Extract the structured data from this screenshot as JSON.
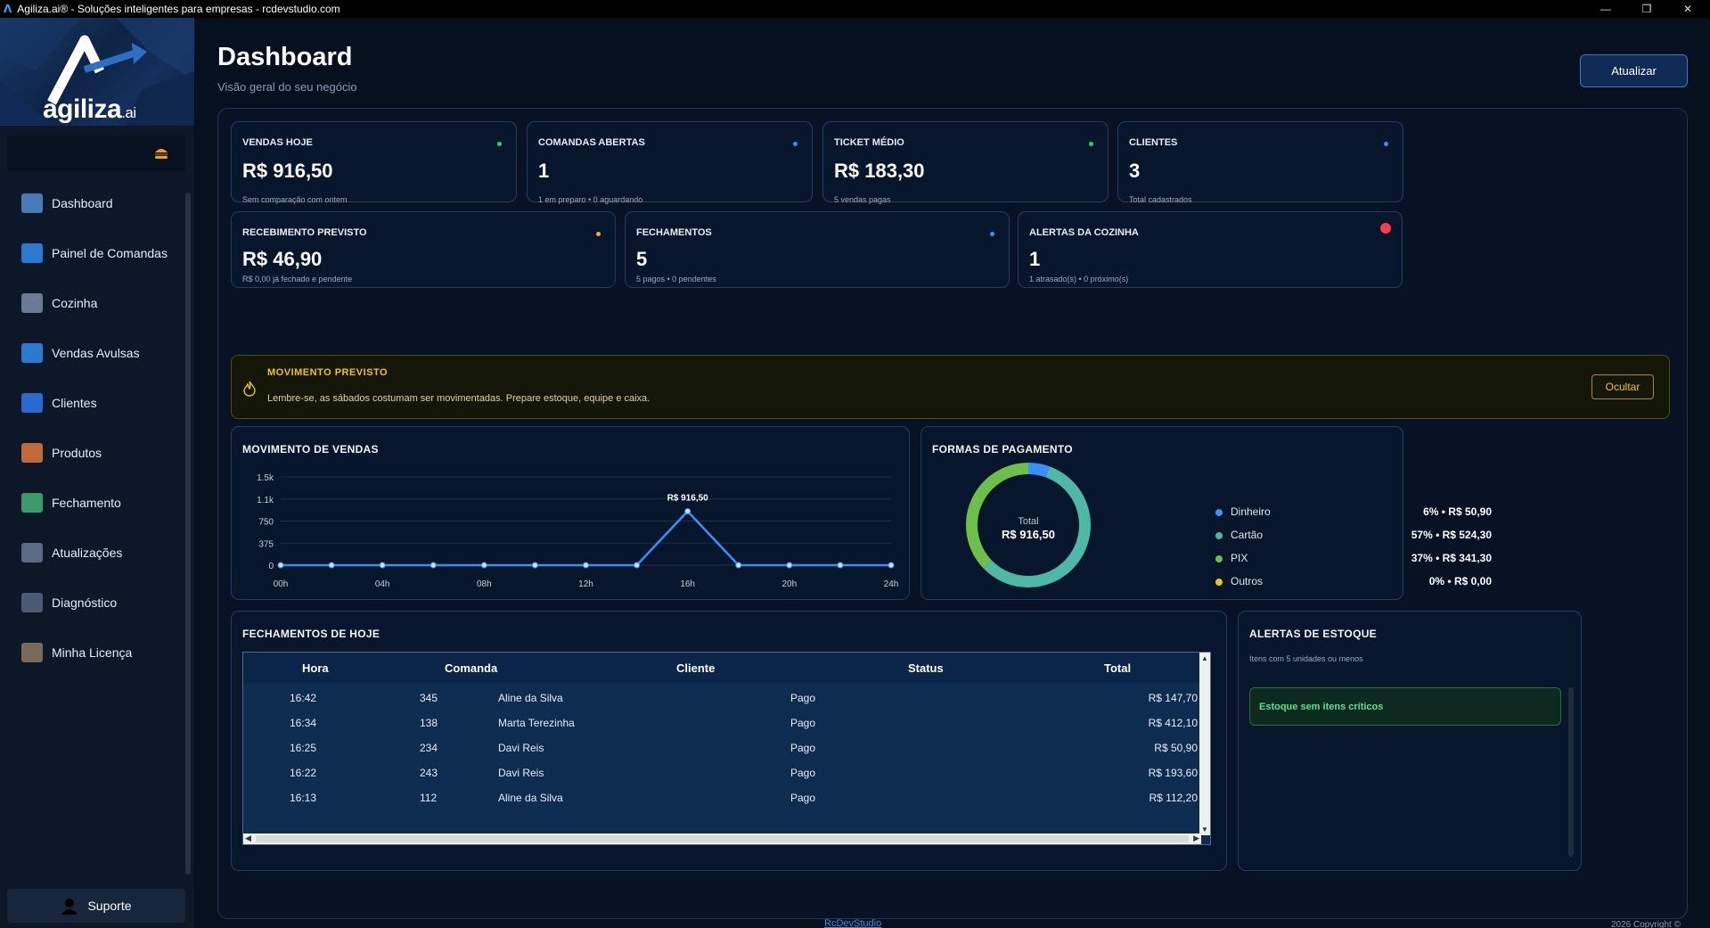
{
  "window": {
    "title": "Agiliza.ai® - Soluções inteligentes para empresas - rcdevstudio.com",
    "icon": "agiliza-logo-icon",
    "controls": [
      "minimize-icon",
      "maximize-icon",
      "close-icon"
    ]
  },
  "brand": {
    "name": "agiliza",
    "suffix": ".ai"
  },
  "sidebar": {
    "items": [
      {
        "label": "Dashboard",
        "icon": "dashboard-icon",
        "color": "#4a79b8"
      },
      {
        "label": "Painel de Comandas",
        "icon": "orders-panel-icon",
        "color": "#2a7ad0"
      },
      {
        "label": "Cozinha",
        "icon": "kitchen-icon",
        "color": "#6a7a94"
      },
      {
        "label": "Vendas Avulsas",
        "icon": "sales-icon",
        "color": "#2a7ad0"
      },
      {
        "label": "Clientes",
        "icon": "clients-icon",
        "color": "#2a6ad0"
      },
      {
        "label": "Produtos",
        "icon": "products-icon",
        "color": "#c06a3a"
      },
      {
        "label": "Fechamento",
        "icon": "closing-icon",
        "color": "#3a9a6a"
      },
      {
        "label": "Atualizações",
        "icon": "updates-icon",
        "color": "#5a6a84"
      },
      {
        "label": "Diagnóstico",
        "icon": "diagnostics-icon",
        "color": "#4a5a74"
      },
      {
        "label": "Minha Licença",
        "icon": "license-icon",
        "color": "#7a6a5a"
      }
    ],
    "support_label": "Suporte"
  },
  "header": {
    "title": "Dashboard",
    "subtitle": "Visão geral do seu negócio",
    "refresh_label": "Atualizar"
  },
  "kpis_row1": [
    {
      "label": "VENDAS HOJE",
      "value": "R$ 916,50",
      "sub": "Sem comparação com ontem",
      "dot": "#27d07a"
    },
    {
      "label": "COMANDAS ABERTAS",
      "value": "1",
      "sub": "1 em preparo • 0 aguardando",
      "dot": "#3a8fff"
    },
    {
      "label": "TICKET MÉDIO",
      "value": "R$ 183,30",
      "sub": "5 vendas pagas",
      "dot": "#27d07a"
    },
    {
      "label": "CLIENTES",
      "value": "3",
      "sub": "Total cadastrados",
      "dot": "#3a8fff"
    }
  ],
  "kpis_row2": [
    {
      "label": "RECEBIMENTO PREVISTO",
      "value": "R$ 46,90",
      "sub": "R$ 0,00 já fechado e pendente",
      "dot": "#f0b020"
    },
    {
      "label": "FECHAMENTOS",
      "value": "5",
      "sub": "5 pagos • 0 pendentes",
      "dot": "#3a8fff"
    },
    {
      "label": "ALERTAS DA COZINHA",
      "value": "1",
      "sub": "1 atrasado(s) • 0 próximo(s)",
      "dot": "#ff3a4a"
    }
  ],
  "alert": {
    "title": "MOVIMENTO PREVISTO",
    "message": "Lembre-se, as sábados costumam ser movimentadas. Prepare estoque, equipe e caixa.",
    "hide_label": "Ocultar",
    "icon": "flame-icon"
  },
  "sales_chart": {
    "title": "MOVIMENTO DE VENDAS",
    "peak_label": "R$ 916,50"
  },
  "payments": {
    "title": "FORMAS DE PAGAMENTO",
    "center_label": "Total",
    "center_value": "R$ 916,50",
    "items": [
      {
        "name": "Dinheiro",
        "text": "6%  •  R$ 50,90",
        "color": "#3a8fff"
      },
      {
        "name": "Cartão",
        "text": "57%  •  R$ 524,30",
        "color": "#4db8a8"
      },
      {
        "name": "PIX",
        "text": "37%  •  R$ 341,30",
        "color": "#6cc04a"
      },
      {
        "name": "Outros",
        "text": "0%  •  R$ 0,00",
        "color": "#f0c020"
      }
    ]
  },
  "closings": {
    "title": "FECHAMENTOS DE HOJE",
    "columns": [
      "Hora",
      "Comanda",
      "Cliente",
      "Status",
      "Total"
    ],
    "rows": [
      [
        "16:42",
        "345",
        "Aline da Silva",
        "Pago",
        "R$ 147,70"
      ],
      [
        "16:34",
        "138",
        "Marta Terezinha",
        "Pago",
        "R$ 412,10"
      ],
      [
        "16:25",
        "234",
        "Davi Reis",
        "Pago",
        "R$ 50,90"
      ],
      [
        "16:22",
        "243",
        "Davi Reis",
        "Pago",
        "R$ 193,60"
      ],
      [
        "16:13",
        "112",
        "Aline da Silva",
        "Pago",
        "R$ 112,20"
      ]
    ]
  },
  "stock": {
    "title": "ALERTAS DE ESTOQUE",
    "subtitle": "Itens com 5 unidades ou menos",
    "ok_message": "Estoque sem itens críticos"
  },
  "footer": {
    "link": "RcDevStudio",
    "copyright": "2026 Copyright ©"
  },
  "chart_data": [
    {
      "type": "line",
      "title": "MOVIMENTO DE VENDAS",
      "x": [
        "00h",
        "02h",
        "04h",
        "06h",
        "08h",
        "10h",
        "12h",
        "14h",
        "16h",
        "18h",
        "20h",
        "22h",
        "24h"
      ],
      "x_tick_labels": [
        "00h",
        "04h",
        "08h",
        "12h",
        "16h",
        "20h",
        "24h"
      ],
      "y_tick_labels": [
        "0",
        "375",
        "750",
        "1.1k",
        "1.5k"
      ],
      "values": [
        0,
        0,
        0,
        0,
        0,
        0,
        0,
        0,
        916.5,
        0,
        0,
        0,
        0
      ],
      "ylim": [
        0,
        1500
      ],
      "color": "#3a8fff",
      "grid": true,
      "annotations": [
        {
          "x": "16h",
          "text": "R$ 916,50"
        }
      ]
    },
    {
      "type": "pie",
      "title": "FORMAS DE PAGAMENTO",
      "categories": [
        "Dinheiro",
        "Cartão",
        "PIX",
        "Outros"
      ],
      "values": [
        50.9,
        524.3,
        341.3,
        0
      ],
      "colors": [
        "#3a8fff",
        "#4db8a8",
        "#6cc04a",
        "#f0c020"
      ],
      "legend": "right"
    }
  ]
}
